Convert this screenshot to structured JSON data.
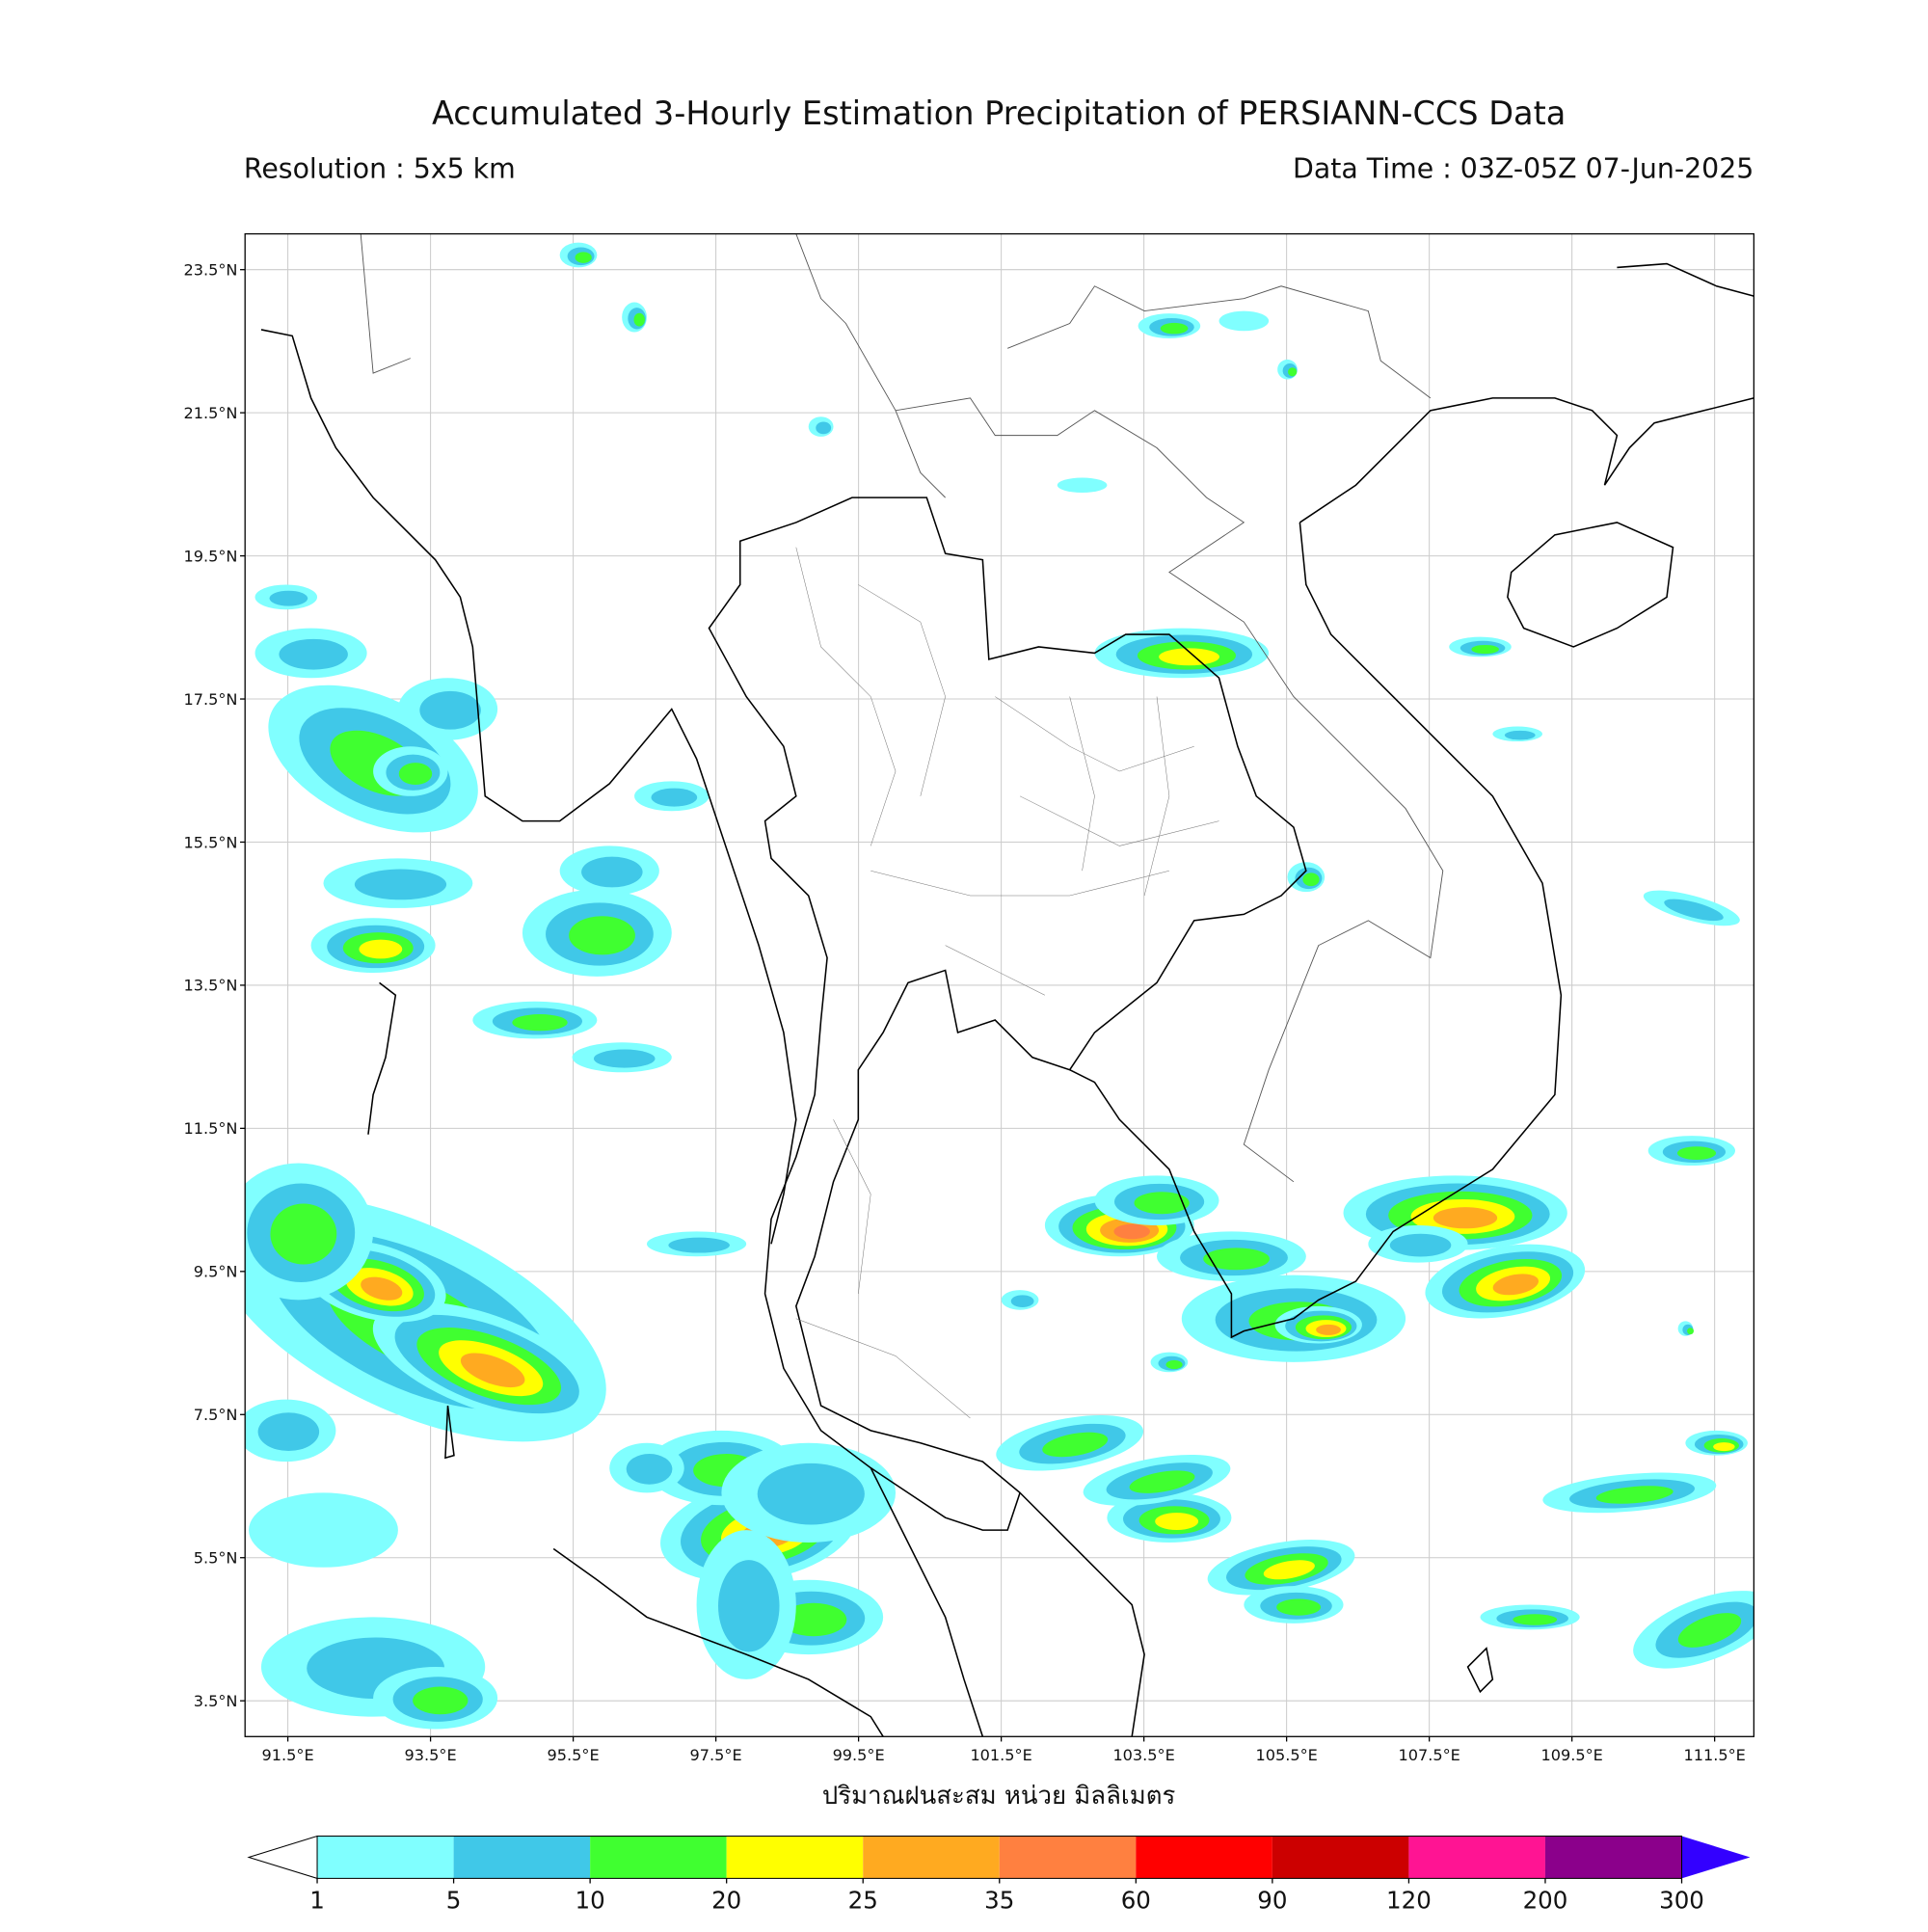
{
  "header": {
    "title": "Accumulated 3-Hourly Estimation Precipitation of PERSIANN-CCS Data",
    "resolution": "Resolution : 5x5 km",
    "data_time": "Data Time : 03Z-05Z 07-Jun-2025"
  },
  "map": {
    "xlim": [
      90.9,
      112.05
    ],
    "ylim": [
      3.0,
      24.0
    ],
    "grid": true,
    "xticks": [
      {
        "value": 91.5,
        "label": "91.5°E"
      },
      {
        "value": 93.5,
        "label": "93.5°E"
      },
      {
        "value": 95.5,
        "label": "95.5°E"
      },
      {
        "value": 97.5,
        "label": "97.5°E"
      },
      {
        "value": 99.5,
        "label": "99.5°E"
      },
      {
        "value": 101.5,
        "label": "101.5°E"
      },
      {
        "value": 103.5,
        "label": "103.5°E"
      },
      {
        "value": 105.5,
        "label": "105.5°E"
      },
      {
        "value": 107.5,
        "label": "107.5°E"
      },
      {
        "value": 109.5,
        "label": "109.5°E"
      },
      {
        "value": 111.5,
        "label": "111.5°E"
      }
    ],
    "yticks": [
      {
        "value": 23.5,
        "label": "23.5°N"
      },
      {
        "value": 21.5,
        "label": "21.5°N"
      },
      {
        "value": 19.5,
        "label": "19.5°N"
      },
      {
        "value": 17.5,
        "label": "17.5°N"
      },
      {
        "value": 15.5,
        "label": "15.5°N"
      },
      {
        "value": 13.5,
        "label": "13.5°N"
      },
      {
        "value": 11.5,
        "label": "11.5°N"
      },
      {
        "value": 9.5,
        "label": "9.5°N"
      },
      {
        "value": 7.5,
        "label": "7.5°N"
      },
      {
        "value": 5.5,
        "label": "5.5°N"
      },
      {
        "value": 3.5,
        "label": "3.5°N"
      }
    ],
    "xlabel": "ปริมาณฝนสะสม หน่วย มิลลิเมตร"
  },
  "colorbar": {
    "ticks": [
      1,
      5,
      10,
      20,
      25,
      35,
      60,
      90,
      120,
      200,
      300
    ],
    "colors": [
      "#80ffff",
      "#40c8e8",
      "#40ff30",
      "#ffff00",
      "#ffaa20",
      "#ff8040",
      "#ff0000",
      "#cc0000",
      "#ff1493",
      "#8b008b"
    ],
    "under_color": "#ffffff",
    "over_color": "#3300ff"
  }
}
